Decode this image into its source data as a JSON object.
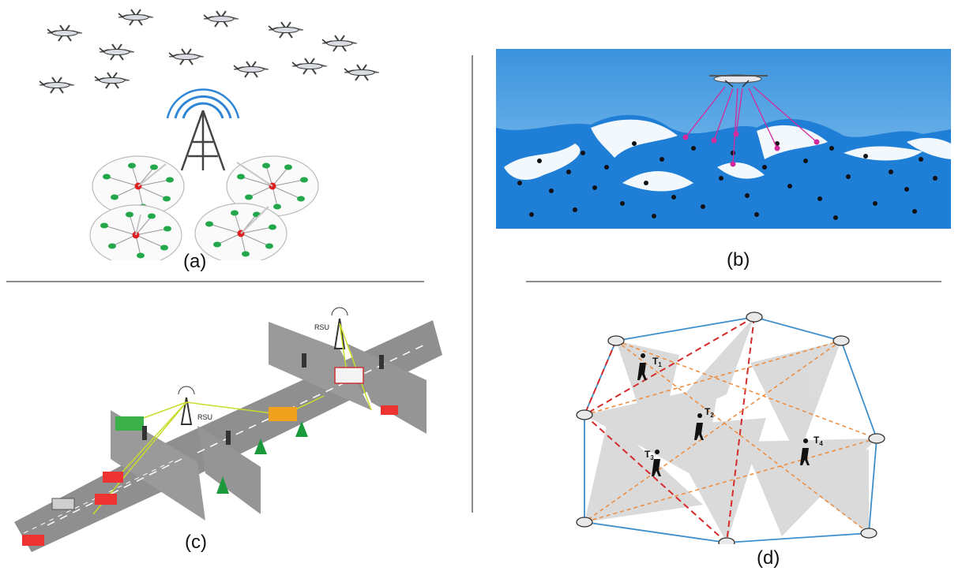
{
  "figure": {
    "panels": [
      {
        "id": "a",
        "caption": "(a)",
        "scene": "uav-swarm-cellular-tower-clusters"
      },
      {
        "id": "b",
        "caption": "(b)",
        "scene": "uav-collecting-from-mountain-sensors"
      },
      {
        "id": "c",
        "caption": "(c)",
        "scene": "vehicular-network-intersection"
      },
      {
        "id": "d",
        "caption": "(d)",
        "scene": "camera-network-tracking-targets"
      }
    ]
  },
  "panel_c": {
    "rsu_labels": [
      "RSU",
      "RSU"
    ]
  },
  "panel_d": {
    "targets": [
      "T",
      "T",
      "T",
      "T"
    ],
    "target_subscripts": [
      "1",
      "2",
      "3",
      "4"
    ]
  },
  "colors": {
    "sky_blue": "#5aa8e6",
    "snow": "#ffffff",
    "link_magenta": "#d12b9c",
    "cluster_head": "#e02020",
    "cluster_node": "#22a84a",
    "tower_wave": "#2f86d6",
    "road": "#8f8f8f",
    "camera_hull": "#3d8fcc",
    "red_dash": "#d62a2a",
    "orange_dash": "#ef8a3a",
    "fov_gray": "#bdbdbd"
  }
}
